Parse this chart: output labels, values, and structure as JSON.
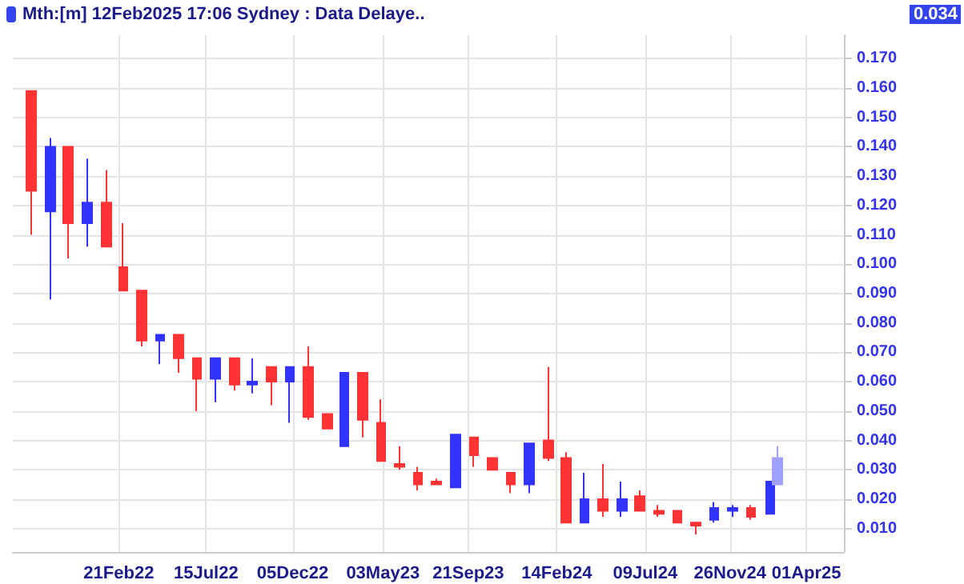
{
  "chart_data": {
    "type": "candlestick",
    "title": "Mth:[m]  12Feb2025 17:06 Sydney : Data Delaye..",
    "annotations": [
      "0.034"
    ],
    "x": [
      "2021-09-30",
      "2021-10-31",
      "2021-11-30",
      "2021-12-31",
      "2022-01-31",
      "2022-02-28",
      "2022-03-31",
      "2022-04-30",
      "2022-05-31",
      "2022-06-30",
      "2022-07-31",
      "2022-08-31",
      "2022-09-30",
      "2022-10-31",
      "2022-11-30",
      "2022-12-31",
      "2023-01-31",
      "2023-02-28",
      "2023-03-31",
      "2023-04-30",
      "2023-05-31",
      "2023-06-30",
      "2023-07-31",
      "2023-08-31",
      "2023-09-30",
      "2023-10-31",
      "2023-11-30",
      "2023-12-31",
      "2024-01-31",
      "2024-02-29",
      "2024-03-31",
      "2024-04-30",
      "2024-05-31",
      "2024-06-30",
      "2024-07-31",
      "2024-08-31",
      "2024-09-30",
      "2024-10-31",
      "2024-11-30",
      "2024-12-31",
      "2025-01-31",
      "2025-02-12"
    ],
    "ohlc": [
      [
        0.159,
        0.159,
        0.11,
        0.125
      ],
      [
        0.118,
        0.143,
        0.088,
        0.14
      ],
      [
        0.14,
        0.14,
        0.102,
        0.114
      ],
      [
        0.114,
        0.136,
        0.106,
        0.121
      ],
      [
        0.121,
        0.132,
        0.106,
        0.106
      ],
      [
        0.099,
        0.114,
        0.091,
        0.091
      ],
      [
        0.091,
        0.091,
        0.072,
        0.074
      ],
      [
        0.074,
        0.076,
        0.066,
        0.076
      ],
      [
        0.076,
        0.076,
        0.063,
        0.068
      ],
      [
        0.068,
        0.068,
        0.05,
        0.061
      ],
      [
        0.061,
        0.068,
        0.053,
        0.068
      ],
      [
        0.068,
        0.068,
        0.057,
        0.059
      ],
      [
        0.059,
        0.068,
        0.056,
        0.06
      ],
      [
        0.065,
        0.065,
        0.052,
        0.06
      ],
      [
        0.06,
        0.065,
        0.046,
        0.065
      ],
      [
        0.065,
        0.072,
        0.047,
        0.048
      ],
      [
        0.049,
        0.049,
        0.044,
        0.044
      ],
      [
        0.038,
        0.063,
        0.038,
        0.063
      ],
      [
        0.063,
        0.063,
        0.041,
        0.047
      ],
      [
        0.046,
        0.054,
        0.033,
        0.033
      ],
      [
        0.032,
        0.038,
        0.03,
        0.031
      ],
      [
        0.029,
        0.031,
        0.023,
        0.025
      ],
      [
        0.026,
        0.027,
        0.025,
        0.025
      ],
      [
        0.024,
        0.042,
        0.024,
        0.042
      ],
      [
        0.041,
        0.041,
        0.031,
        0.035
      ],
      [
        0.034,
        0.034,
        0.03,
        0.03
      ],
      [
        0.029,
        0.029,
        0.022,
        0.025
      ],
      [
        0.025,
        0.039,
        0.022,
        0.039
      ],
      [
        0.04,
        0.065,
        0.033,
        0.034
      ],
      [
        0.034,
        0.036,
        0.012,
        0.012
      ],
      [
        0.012,
        0.029,
        0.012,
        0.02
      ],
      [
        0.02,
        0.032,
        0.014,
        0.016
      ],
      [
        0.016,
        0.026,
        0.014,
        0.02
      ],
      [
        0.021,
        0.023,
        0.016,
        0.016
      ],
      [
        0.016,
        0.018,
        0.014,
        0.015
      ],
      [
        0.016,
        0.016,
        0.012,
        0.012
      ],
      [
        0.012,
        0.012,
        0.008,
        0.011
      ],
      [
        0.013,
        0.019,
        0.012,
        0.017
      ],
      [
        0.016,
        0.018,
        0.014,
        0.017
      ],
      [
        0.017,
        0.018,
        0.013,
        0.014
      ],
      [
        0.015,
        0.026,
        0.015,
        0.026
      ],
      [
        0.025,
        0.038,
        0.025,
        0.034
      ]
    ],
    "colors": [
      "#ff3333",
      "#3333ff",
      "#ff3333",
      "#3333ff",
      "#ff3333",
      "#ff3333",
      "#ff3333",
      "#3333ff",
      "#ff3333",
      "#ff3333",
      "#3333ff",
      "#ff3333",
      "#3333ff",
      "#ff3333",
      "#3333ff",
      "#ff3333",
      "#ff3333",
      "#3333ff",
      "#ff3333",
      "#ff3333",
      "#ff3333",
      "#ff3333",
      "#ff3333",
      "#3333ff",
      "#ff3333",
      "#ff3333",
      "#ff3333",
      "#3333ff",
      "#ff3333",
      "#ff3333",
      "#3333ff",
      "#ff3333",
      "#3333ff",
      "#ff3333",
      "#ff3333",
      "#ff3333",
      "#ff3333",
      "#3333ff",
      "#3333ff",
      "#ff3333",
      "#3333ff",
      "#a0a0ff"
    ],
    "xlim": [
      "2021-08-30",
      "2025-06-02"
    ],
    "xticks": [
      {
        "value": "2022-02-21",
        "label": "21Feb22"
      },
      {
        "value": "2022-07-15",
        "label": "15Jul22"
      },
      {
        "value": "2022-12-05",
        "label": "05Dec22"
      },
      {
        "value": "2023-05-03",
        "label": "03May23"
      },
      {
        "value": "2023-09-21",
        "label": "21Sep23"
      },
      {
        "value": "2024-02-14",
        "label": "14Feb24"
      },
      {
        "value": "2024-07-09",
        "label": "09Jul24"
      },
      {
        "value": "2024-11-26",
        "label": "26Nov24"
      },
      {
        "value": "2025-04-01",
        "label": "01Apr25"
      }
    ],
    "ylim": [
      0.002,
      0.178
    ],
    "yticks": [
      {
        "value": 0.01,
        "label": "0.010"
      },
      {
        "value": 0.02,
        "label": "0.020"
      },
      {
        "value": 0.03,
        "label": "0.030"
      },
      {
        "value": 0.04,
        "label": "0.040"
      },
      {
        "value": 0.05,
        "label": "0.050"
      },
      {
        "value": 0.06,
        "label": "0.060"
      },
      {
        "value": 0.07,
        "label": "0.070"
      },
      {
        "value": 0.08,
        "label": "0.080"
      },
      {
        "value": 0.09,
        "label": "0.090"
      },
      {
        "value": 0.1,
        "label": "0.100"
      },
      {
        "value": 0.11,
        "label": "0.110"
      },
      {
        "value": 0.12,
        "label": "0.120"
      },
      {
        "value": 0.13,
        "label": "0.130"
      },
      {
        "value": 0.14,
        "label": "0.140"
      },
      {
        "value": 0.15,
        "label": "0.150"
      },
      {
        "value": 0.16,
        "label": "0.160"
      },
      {
        "value": 0.17,
        "label": "0.170"
      }
    ],
    "grid": true
  }
}
